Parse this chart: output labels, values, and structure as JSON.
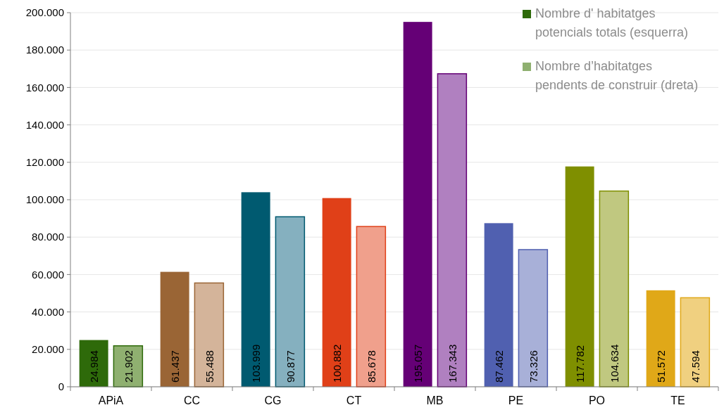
{
  "chart_data": {
    "type": "bar",
    "categories": [
      "APiA",
      "CC",
      "CG",
      "CT",
      "MB",
      "PE",
      "PO",
      "TE"
    ],
    "series": [
      {
        "name": "Nombre d' habitatges potencials totals (esquerra)",
        "color": "#2e6a0a",
        "colors": [
          "#2e6a0a",
          "#9a6535",
          "#005a70",
          "#e04018",
          "#650076",
          "#5060b0",
          "#7f8f00",
          "#e0a818"
        ],
        "values": [
          24984,
          61437,
          103999,
          100882,
          195057,
          87462,
          117782,
          51572
        ],
        "value_labels": [
          "24.984",
          "61.437",
          "103.999",
          "100.882",
          "195.057",
          "87.462",
          "117.782",
          "51.572"
        ]
      },
      {
        "name": "Nombre d’habitatges pendents de construir (dreta)",
        "color": "#8fb070",
        "colors": [
          "#8fb070",
          "#d4b49a",
          "#85b0bf",
          "#f0a08c",
          "#b080c0",
          "#a8b0d8",
          "#c0c880",
          "#f0d080"
        ],
        "values": [
          21902,
          55488,
          90877,
          85678,
          167343,
          73326,
          104634,
          47594
        ],
        "value_labels": [
          "21.902",
          "55.488",
          "90.877",
          "85.678",
          "167.343",
          "73.326",
          "104.634",
          "47.594"
        ]
      }
    ],
    "ylim": [
      0,
      200000
    ],
    "yticks": [
      0,
      {
        "value": 20000,
        "label": "20.000"
      },
      {
        "value": 40000,
        "label": "40.000"
      },
      {
        "value": 60000,
        "label": "60.000"
      },
      {
        "value": 80000,
        "label": "80.000"
      },
      {
        "value": 100000,
        "label": "100.000"
      },
      {
        "value": 120000,
        "label": "120.000"
      },
      {
        "value": 140000,
        "label": "140.000"
      },
      {
        "value": 160000,
        "label": "160.000"
      },
      {
        "value": 180000,
        "label": "180.000"
      },
      {
        "value": 200000,
        "label": "200.000"
      }
    ],
    "grid": "y",
    "legend": "top right"
  }
}
